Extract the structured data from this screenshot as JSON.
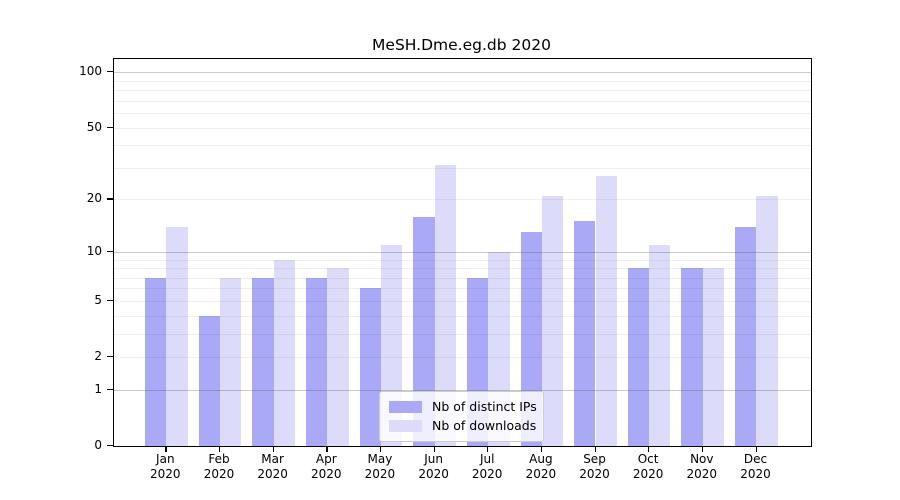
{
  "figure": {
    "title": "MeSH.Dme.eg.db 2020"
  },
  "chart_data": {
    "type": "bar",
    "title": "MeSH.Dme.eg.db 2020",
    "categories": [
      "Jan 2020",
      "Feb 2020",
      "Mar 2020",
      "Apr 2020",
      "May 2020",
      "Jun 2020",
      "Jul 2020",
      "Aug 2020",
      "Sep 2020",
      "Oct 2020",
      "Nov 2020",
      "Dec 2020"
    ],
    "series": [
      {
        "name": "Nb of distinct IPs",
        "color": "#a9a9f7",
        "values": [
          7,
          4,
          7,
          7,
          6,
          16,
          7,
          13,
          15,
          8,
          8,
          14
        ]
      },
      {
        "name": "Nb of downloads",
        "color": "#dcdcfa",
        "values": [
          14,
          7,
          9,
          8,
          11,
          31,
          10,
          21,
          27,
          11,
          8,
          21
        ]
      }
    ],
    "xlabel": "",
    "ylabel": "",
    "yscale": "log1p",
    "ylim": [
      0,
      120
    ],
    "y_tick_values": [
      0,
      1,
      2,
      5,
      10,
      20,
      50,
      100
    ],
    "y_tick_labels": [
      "0",
      "1",
      "2",
      "5",
      "10",
      "20",
      "50",
      "100"
    ],
    "major_gridlines": [
      1,
      10,
      100
    ],
    "minor_gridlines": [
      2,
      3,
      4,
      5,
      6,
      7,
      8,
      9,
      20,
      30,
      40,
      50,
      60,
      70,
      80,
      90
    ],
    "grid": true,
    "legend_position": "lower center"
  },
  "colors": {
    "bar_distinct_ips": "#a9a9f7",
    "bar_downloads": "#dcdcfa",
    "major_gridline": "rgba(80,80,80,0.30)",
    "minor_gridline": "rgba(80,80,80,0.09)",
    "spine": "#000000",
    "text": "#000000",
    "legend_border": "#cccccc",
    "legend_background": "rgba(255,255,255,0.8)"
  }
}
